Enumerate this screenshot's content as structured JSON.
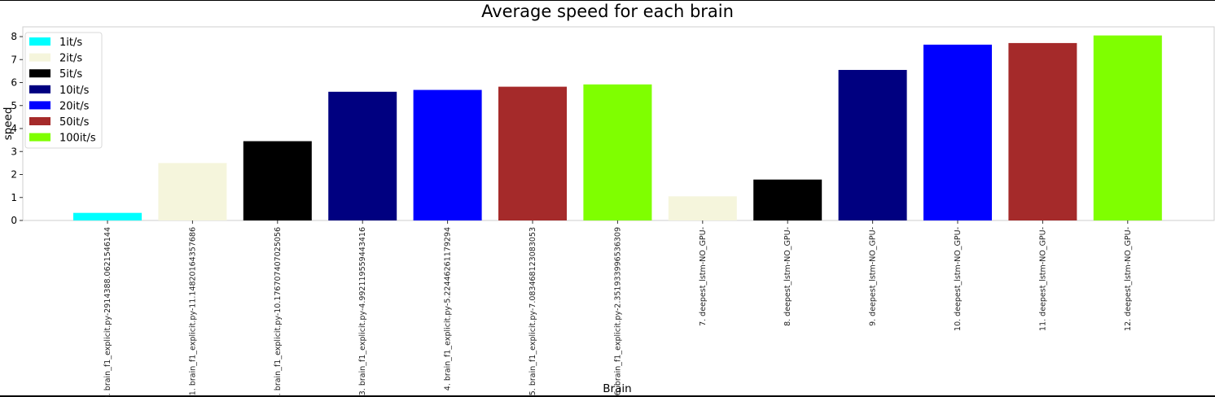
{
  "chart_data": {
    "type": "bar",
    "title": "Average speed for each brain",
    "xlabel": "Brain",
    "ylabel": "speed",
    "ylim": [
      0,
      8.4
    ],
    "yticks": [
      0,
      1,
      2,
      3,
      4,
      5,
      6,
      7,
      8
    ],
    "grid": false,
    "legend_placement": "top-left",
    "legend": [
      {
        "label": "1it/s",
        "color": "#00ffff"
      },
      {
        "label": "2it/s",
        "color": "#f5f5dc"
      },
      {
        "label": "5it/s",
        "color": "#000000"
      },
      {
        "label": "10it/s",
        "color": "#000080"
      },
      {
        "label": "20it/s",
        "color": "#0000ff"
      },
      {
        "label": "50it/s",
        "color": "#a52a2a"
      },
      {
        "label": "100it/s",
        "color": "#7fff00"
      }
    ],
    "categories": [
      "0. brain_f1_explicit.py-2914388.0621546144",
      "1. brain_f1_explicit.py-11.1482016435768б",
      "2. brain_f1_explicit.py-10.176707407025056",
      "3. brain_f1_explicit.py-4.99211955944341б",
      "4. brain_f1_explicit.py-5.22446261179294",
      "5. brain_f1_explicit.py-7.08346812308305З",
      "6. brain_f1_explicit.py-2.351933996536309",
      "7. deepest_lstm-NO_GPU-",
      "8. deepest_lstm-NO_GPU-",
      "9. deepest_lstm-NO_GPU-",
      "10. deepest_lstm-NO_GPU-",
      "11. deepest_lstm-NO_GPU-",
      "12. deepest_lstm-NO_GPU-"
    ],
    "values": [
      0.33,
      2.5,
      3.45,
      5.6,
      5.68,
      5.82,
      5.92,
      1.05,
      1.78,
      6.55,
      7.65,
      7.72,
      8.05
    ],
    "bar_colors": [
      "#00ffff",
      "#f5f5dc",
      "#000000",
      "#000080",
      "#0000ff",
      "#a52a2a",
      "#7fff00",
      "#f5f5dc",
      "#000000",
      "#000080",
      "#0000ff",
      "#a52a2a",
      "#7fff00"
    ]
  }
}
